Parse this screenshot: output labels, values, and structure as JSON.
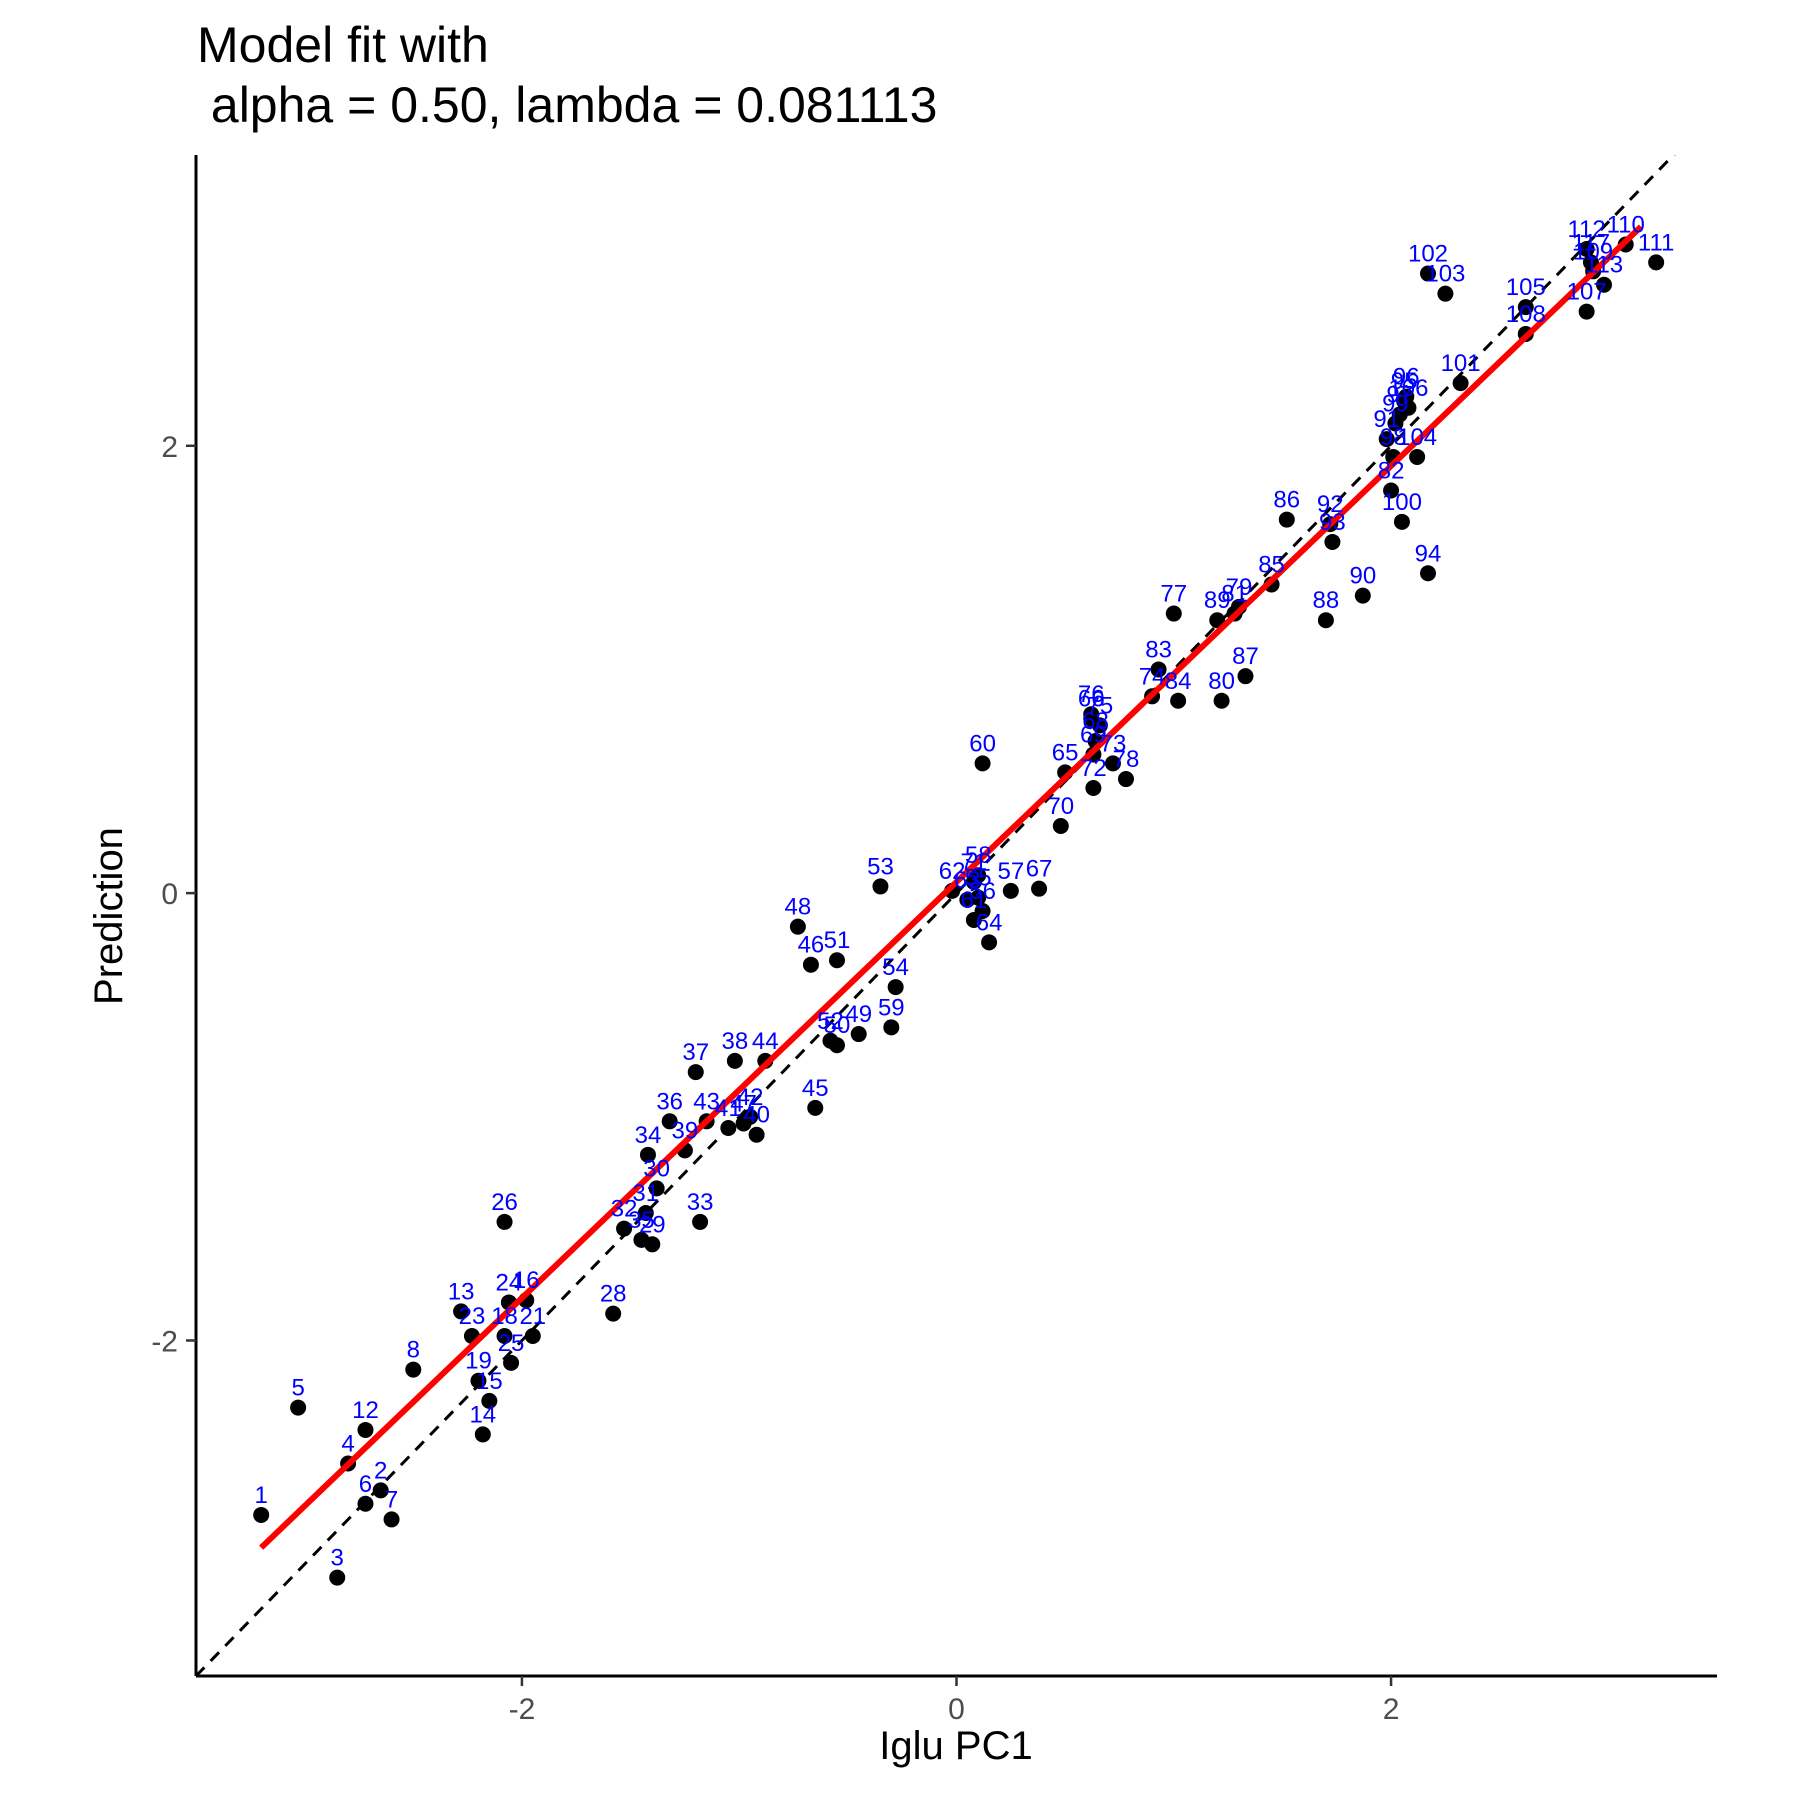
{
  "chart_data": {
    "type": "scatter",
    "title": "Model fit with",
    "subtitle": " alpha = 0.50, lambda = 0.081113",
    "xlabel": "Iglu PC1",
    "ylabel": "Prediction",
    "xlim": [
      -3.5,
      3.5
    ],
    "ylim": [
      -3.5,
      3.3
    ],
    "x_ticks": [
      -2,
      0,
      2
    ],
    "y_ticks": [
      -2,
      0,
      2
    ],
    "x_tick_labels": [
      "-2",
      "0",
      "2"
    ],
    "y_tick_labels": [
      "-2",
      "0",
      "2"
    ],
    "grid": false,
    "legend": "none",
    "colors": {
      "points": "#000000",
      "labels": "#0000ff",
      "fit_line": "#ff0000",
      "identity_line": "#000000"
    },
    "fit_line": {
      "intercept": 0.05,
      "slope": 0.93,
      "x_range": [
        -3.2,
        3.15
      ],
      "style": "solid"
    },
    "identity_line": {
      "slope": 1,
      "intercept": 0,
      "style": "dashed"
    },
    "points": [
      {
        "label": "1",
        "x": -3.2,
        "y": -2.78
      },
      {
        "label": "2",
        "x": -2.65,
        "y": -2.67
      },
      {
        "label": "3",
        "x": -2.85,
        "y": -3.06
      },
      {
        "label": "4",
        "x": -2.8,
        "y": -2.55
      },
      {
        "label": "5",
        "x": -3.03,
        "y": -2.3
      },
      {
        "label": "6",
        "x": -2.72,
        "y": -2.73
      },
      {
        "label": "7",
        "x": -2.6,
        "y": -2.8
      },
      {
        "label": "8",
        "x": -2.5,
        "y": -2.13
      },
      {
        "label": "12",
        "x": -2.72,
        "y": -2.4
      },
      {
        "label": "13",
        "x": -2.28,
        "y": -1.87
      },
      {
        "label": "14",
        "x": -2.18,
        "y": -2.42
      },
      {
        "label": "15",
        "x": -2.15,
        "y": -2.27
      },
      {
        "label": "18",
        "x": -2.08,
        "y": -1.98
      },
      {
        "label": "19",
        "x": -2.2,
        "y": -2.18
      },
      {
        "label": "21",
        "x": -1.95,
        "y": -1.98
      },
      {
        "label": "23",
        "x": -2.23,
        "y": -1.98
      },
      {
        "label": "24",
        "x": -2.06,
        "y": -1.83
      },
      {
        "label": "25",
        "x": -2.05,
        "y": -2.1
      },
      {
        "label": "26",
        "x": -2.08,
        "y": -1.47
      },
      {
        "label": "16",
        "x": -1.98,
        "y": -1.82
      },
      {
        "label": "28",
        "x": -1.58,
        "y": -1.88
      },
      {
        "label": "29",
        "x": -1.4,
        "y": -1.57
      },
      {
        "label": "30",
        "x": -1.38,
        "y": -1.32
      },
      {
        "label": "31",
        "x": -1.43,
        "y": -1.43
      },
      {
        "label": "32",
        "x": -1.53,
        "y": -1.5
      },
      {
        "label": "33",
        "x": -1.18,
        "y": -1.47
      },
      {
        "label": "34",
        "x": -1.42,
        "y": -1.17
      },
      {
        "label": "35",
        "x": -1.45,
        "y": -1.55
      },
      {
        "label": "36",
        "x": -1.32,
        "y": -1.02
      },
      {
        "label": "37",
        "x": -1.2,
        "y": -0.8
      },
      {
        "label": "38",
        "x": -1.02,
        "y": -0.75
      },
      {
        "label": "39",
        "x": -1.25,
        "y": -1.15
      },
      {
        "label": "40",
        "x": -0.92,
        "y": -1.08
      },
      {
        "label": "41",
        "x": -1.05,
        "y": -1.05
      },
      {
        "label": "42",
        "x": -0.95,
        "y": -1.0
      },
      {
        "label": "43",
        "x": -1.15,
        "y": -1.02
      },
      {
        "label": "44",
        "x": -0.88,
        "y": -0.75
      },
      {
        "label": "45",
        "x": -0.65,
        "y": -0.96
      },
      {
        "label": "46",
        "x": -0.67,
        "y": -0.32
      },
      {
        "label": "47",
        "x": -0.98,
        "y": -1.03
      },
      {
        "label": "48",
        "x": -0.73,
        "y": -0.15
      },
      {
        "label": "49",
        "x": -0.45,
        "y": -0.63
      },
      {
        "label": "50",
        "x": -0.55,
        "y": -0.68
      },
      {
        "label": "51",
        "x": -0.55,
        "y": -0.3
      },
      {
        "label": "52",
        "x": -0.58,
        "y": -0.66
      },
      {
        "label": "53",
        "x": -0.35,
        "y": 0.03
      },
      {
        "label": "54",
        "x": -0.28,
        "y": -0.42
      },
      {
        "label": "55",
        "x": 0.1,
        "y": -0.02
      },
      {
        "label": "56",
        "x": 0.12,
        "y": -0.08
      },
      {
        "label": "57",
        "x": 0.25,
        "y": 0.01
      },
      {
        "label": "58",
        "x": 0.1,
        "y": 0.08
      },
      {
        "label": "59",
        "x": -0.3,
        "y": -0.6
      },
      {
        "label": "60",
        "x": 0.12,
        "y": 0.58
      },
      {
        "label": "61",
        "x": 0.08,
        "y": -0.12
      },
      {
        "label": "62",
        "x": -0.02,
        "y": 0.01
      },
      {
        "label": "63",
        "x": 0.05,
        "y": -0.03
      },
      {
        "label": "64",
        "x": 0.15,
        "y": -0.22
      },
      {
        "label": "65",
        "x": 0.5,
        "y": 0.54
      },
      {
        "label": "66",
        "x": 0.62,
        "y": 0.78
      },
      {
        "label": "67",
        "x": 0.38,
        "y": 0.02
      },
      {
        "label": "68",
        "x": 0.64,
        "y": 0.68
      },
      {
        "label": "69",
        "x": 0.63,
        "y": 0.62
      },
      {
        "label": "70",
        "x": 0.48,
        "y": 0.3
      },
      {
        "label": "71",
        "x": 0.08,
        "y": 0.05
      },
      {
        "label": "72",
        "x": 0.63,
        "y": 0.47
      },
      {
        "label": "73",
        "x": 0.72,
        "y": 0.58
      },
      {
        "label": "74",
        "x": 0.9,
        "y": 0.88
      },
      {
        "label": "75",
        "x": 0.66,
        "y": 0.75
      },
      {
        "label": "76",
        "x": 0.62,
        "y": 0.8
      },
      {
        "label": "77",
        "x": 1.0,
        "y": 1.25
      },
      {
        "label": "78",
        "x": 0.78,
        "y": 0.51
      },
      {
        "label": "79",
        "x": 1.3,
        "y": 1.28
      },
      {
        "label": "80",
        "x": 1.22,
        "y": 0.86
      },
      {
        "label": "81",
        "x": 1.28,
        "y": 1.25
      },
      {
        "label": "82",
        "x": 2.0,
        "y": 1.8
      },
      {
        "label": "83",
        "x": 0.93,
        "y": 1.0
      },
      {
        "label": "84",
        "x": 1.02,
        "y": 0.86
      },
      {
        "label": "85",
        "x": 1.45,
        "y": 1.38
      },
      {
        "label": "86",
        "x": 1.52,
        "y": 1.67
      },
      {
        "label": "87",
        "x": 1.33,
        "y": 0.97
      },
      {
        "label": "88",
        "x": 1.7,
        "y": 1.22
      },
      {
        "label": "89",
        "x": 1.2,
        "y": 1.22
      },
      {
        "label": "90",
        "x": 1.87,
        "y": 1.33
      },
      {
        "label": "91",
        "x": 1.98,
        "y": 2.03
      },
      {
        "label": "92",
        "x": 1.72,
        "y": 1.65
      },
      {
        "label": "93",
        "x": 1.73,
        "y": 1.57
      },
      {
        "label": "94",
        "x": 2.17,
        "y": 1.43
      },
      {
        "label": "95",
        "x": 2.06,
        "y": 2.2
      },
      {
        "label": "96",
        "x": 2.07,
        "y": 2.22
      },
      {
        "label": "97",
        "x": 2.04,
        "y": 2.14
      },
      {
        "label": "98",
        "x": 2.01,
        "y": 1.95
      },
      {
        "label": "99",
        "x": 2.02,
        "y": 2.1
      },
      {
        "label": "100",
        "x": 2.05,
        "y": 1.66
      },
      {
        "label": "101",
        "x": 2.32,
        "y": 2.28
      },
      {
        "label": "102",
        "x": 2.17,
        "y": 2.77
      },
      {
        "label": "103",
        "x": 2.25,
        "y": 2.68
      },
      {
        "label": "104",
        "x": 2.12,
        "y": 1.95
      },
      {
        "label": "105",
        "x": 2.62,
        "y": 2.62
      },
      {
        "label": "106",
        "x": 2.08,
        "y": 2.17
      },
      {
        "label": "107",
        "x": 2.9,
        "y": 2.6
      },
      {
        "label": "108",
        "x": 2.62,
        "y": 2.5
      },
      {
        "label": "109",
        "x": 2.93,
        "y": 2.78
      },
      {
        "label": "110",
        "x": 3.08,
        "y": 2.9
      },
      {
        "label": "111",
        "x": 3.22,
        "y": 2.82
      },
      {
        "label": "112",
        "x": 2.9,
        "y": 2.88
      },
      {
        "label": "113",
        "x": 2.98,
        "y": 2.72
      },
      {
        "label": "117",
        "x": 2.92,
        "y": 2.82
      }
    ]
  }
}
